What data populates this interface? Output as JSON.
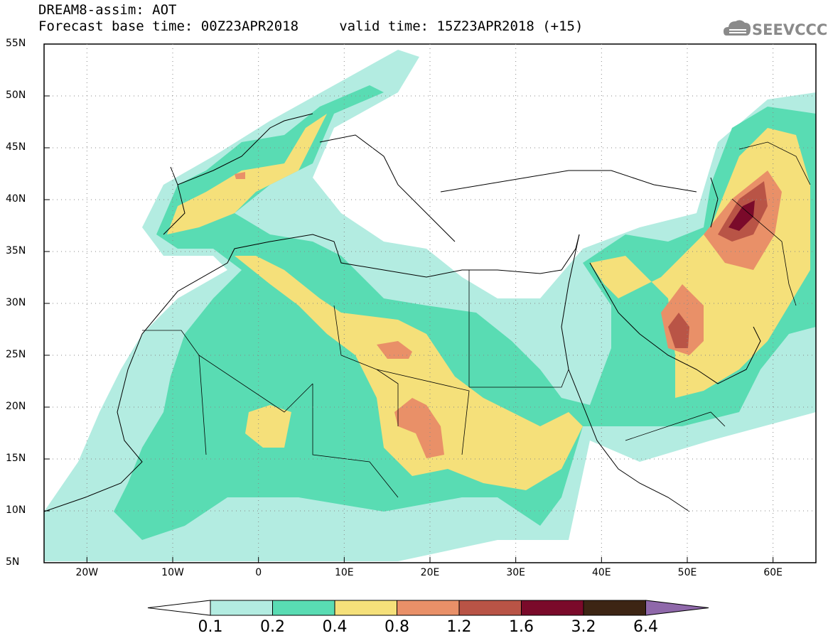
{
  "header": {
    "line1": "DREAM8-assim: AOT",
    "line2": "Forecast base time: 00Z23APR2018     valid time: 15Z23APR2018 (+15)"
  },
  "logo": {
    "text": "SEEVCCC",
    "icon": "cloud-logo-icon"
  },
  "map": {
    "lat_labels": [
      "55N",
      "50N",
      "45N",
      "40N",
      "35N",
      "30N",
      "25N",
      "20N",
      "15N",
      "10N",
      "5N"
    ],
    "lon_labels": [
      "20W",
      "10W",
      "0",
      "10E",
      "20E",
      "30E",
      "40E",
      "50E",
      "60E"
    ],
    "extent": {
      "lon_min": -25,
      "lon_max": 65,
      "lat_min": 5,
      "lat_max": 55
    }
  },
  "colorbar": {
    "labels": [
      "0.1",
      "0.2",
      "0.4",
      "0.8",
      "1.2",
      "1.6",
      "3.2",
      "6.4"
    ],
    "colors": {
      "below": "#ffffff",
      "c1": "#b3ece1",
      "c2": "#59dcb3",
      "c3": "#f5e07a",
      "c4": "#e99068",
      "c5": "#b95446",
      "c6": "#7a0a2a",
      "c7": "#3d2514",
      "above": "#8f68aa"
    }
  }
}
